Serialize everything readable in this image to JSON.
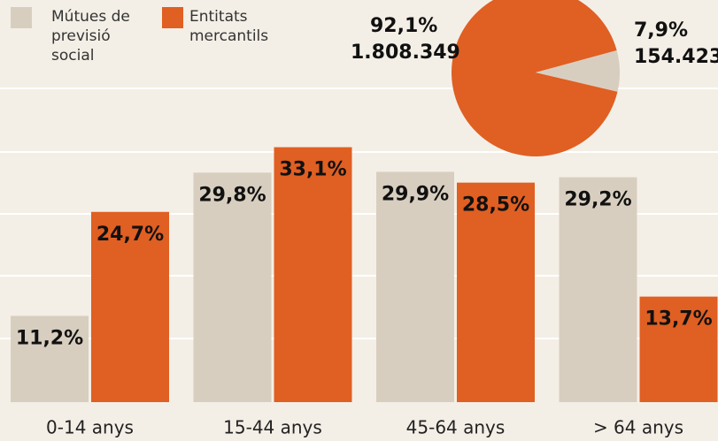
{
  "chart_data": [
    {
      "type": "bar",
      "categories": [
        "0-14 anys",
        "15-44 anys",
        "45-64 anys",
        "> 64 anys"
      ],
      "series": [
        {
          "name": "Mútues de previsió social",
          "color": "#d8cebf",
          "values": [
            11.2,
            29.8,
            29.9,
            29.2
          ],
          "value_labels": [
            "11,2%",
            "29,8%",
            "29,9%",
            "29,2%"
          ]
        },
        {
          "name": "Entitats mercantils",
          "color": "#e05f22",
          "values": [
            24.7,
            33.1,
            28.5,
            13.7
          ],
          "value_labels": [
            "24,7%",
            "33,1%",
            "28,5%",
            "13,7%"
          ]
        }
      ],
      "ylim": [
        0,
        35
      ]
    },
    {
      "type": "pie",
      "values": [
        92.1,
        7.9
      ],
      "value_labels": [
        "92,1%",
        "7,9%"
      ],
      "counts": [
        1808349,
        154423
      ],
      "count_labels": [
        "1.808.349",
        "154.423"
      ],
      "colors": [
        "#e05f22",
        "#d8cebf"
      ]
    }
  ]
}
